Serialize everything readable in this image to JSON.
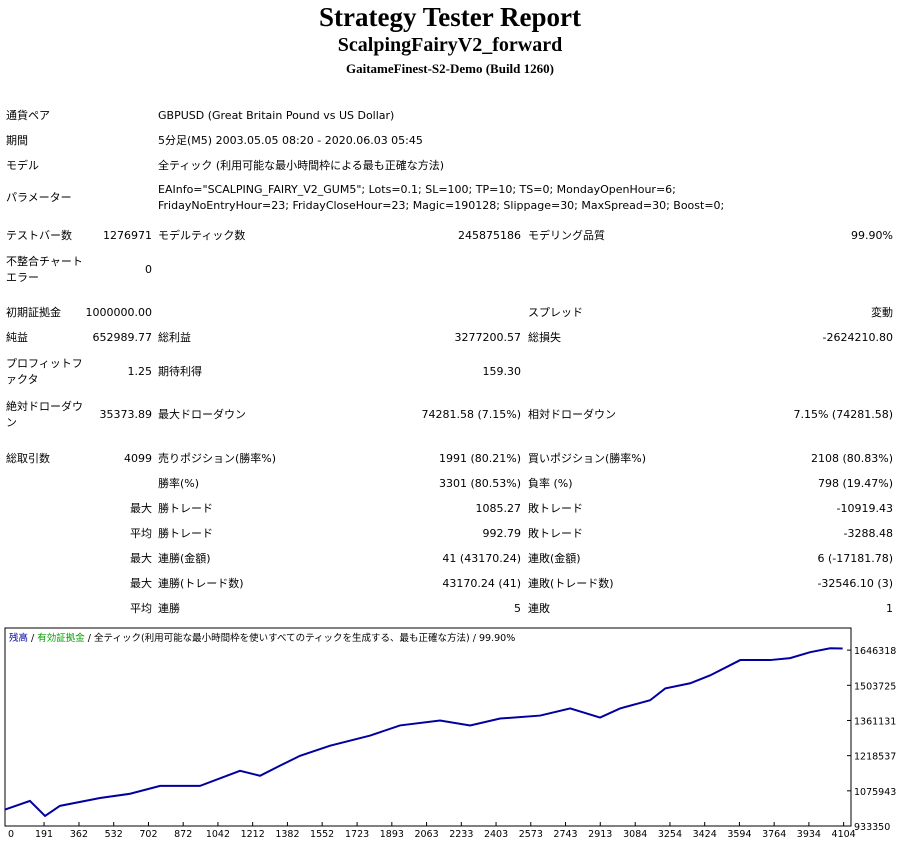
{
  "header": {
    "title": "Strategy Tester Report",
    "subtitle": "ScalpingFairyV2_forward",
    "server": "GaitameFinest-S2-Demo (Build 1260)"
  },
  "table": {
    "rows": [
      [
        "通貨ペア",
        "GBPUSD (Great Britain Pound vs US Dollar)"
      ],
      [
        "期間",
        "5分足(M5) 2003.05.05 08:20 - 2020.06.03 05:45"
      ],
      [
        "モデル",
        "全ティック (利用可能な最小時間枠による最も正確な方法)"
      ],
      [
        "パラメーター",
        "EAInfo=\"SCALPING_FAIRY_V2_GUM5\"; Lots=0.1; SL=100; TP=10; TS=0; MondayOpenHour=6; FridayNoEntryHour=23; FridayCloseHour=23; Magic=190128; Slippage=30; MaxSpread=30; Boost=0;"
      ],
      [
        "テストバー数",
        "1276971",
        "モデルティック数",
        "245875186",
        "モデリング品質",
        "99.90%"
      ],
      [
        "不整合チャートエラー",
        "0"
      ],
      [
        "初期証拠金",
        "1000000.00",
        "スプレッド",
        "変動"
      ],
      [
        "純益",
        "652989.77",
        "総利益",
        "3277200.57",
        "総損失",
        "-2624210.80"
      ],
      [
        "プロフィットファクタ",
        "1.25",
        "期待利得",
        "159.30"
      ],
      [
        "絶対ドローダウン",
        "35373.89",
        "最大ドローダウン",
        "74281.58 (7.15%)",
        "相対ドローダウン",
        "7.15% (74281.58)"
      ],
      [
        "総取引数",
        "4099",
        "売りポジション(勝率%)",
        "1991 (80.21%)",
        "買いポジション(勝率%)",
        "2108 (80.83%)"
      ],
      [
        "勝率(%)",
        "3301 (80.53%)",
        "負率 (%)",
        "798 (19.47%)"
      ],
      [
        "最大",
        "勝トレード",
        "1085.27",
        "敗トレード",
        "-10919.43"
      ],
      [
        "平均",
        "勝トレード",
        "992.79",
        "敗トレード",
        "-3288.48"
      ],
      [
        "最大",
        "連勝(金額)",
        "41 (43170.24)",
        "連敗(金額)",
        "6 (-17181.78)"
      ],
      [
        "最大",
        "連勝(トレード数)",
        "43170.24 (41)",
        "連敗(トレード数)",
        "-32546.10 (3)"
      ],
      [
        "平均",
        "連勝",
        "5",
        "連敗",
        "1"
      ]
    ]
  },
  "chart_data": {
    "type": "line",
    "separator": " / ",
    "equity_label": "有効証拠金",
    "equity_color": "#00a000",
    "model_label": "全ティック(利用可能な最小時間枠を使いすべてのティックを生成する、最も正確な方法)",
    "quality": "99.90%",
    "x": [
      0,
      122,
      196,
      269,
      465,
      612,
      759,
      954,
      1150,
      1248,
      1346,
      1444,
      1591,
      1787,
      1933,
      2129,
      2276,
      2423,
      2619,
      2766,
      2912,
      3010,
      3157,
      3231,
      3353,
      3451,
      3598,
      3744,
      3842,
      3940,
      4038,
      4099
    ],
    "series": [
      {
        "name": "残高",
        "color": "#0000a0",
        "values": [
          1000000,
          1035000,
          974000,
          1015000,
          1047000,
          1064000,
          1096000,
          1096000,
          1157000,
          1137000,
          1178000,
          1218000,
          1259000,
          1300000,
          1341000,
          1361000,
          1341000,
          1369000,
          1381000,
          1410000,
          1373000,
          1410000,
          1443000,
          1491000,
          1512000,
          1544000,
          1606000,
          1606000,
          1614000,
          1638000,
          1654000,
          1652990
        ]
      }
    ],
    "xlim": [
      0,
      4140
    ],
    "xticks": [
      0,
      191,
      362,
      532,
      702,
      872,
      1042,
      1212,
      1382,
      1552,
      1723,
      1893,
      2063,
      2233,
      2403,
      2573,
      2743,
      2913,
      3084,
      3254,
      3424,
      3594,
      3764,
      3934,
      4104
    ],
    "ylim": [
      933350,
      1735948
    ],
    "yticks": [
      933350,
      1075943,
      1218537,
      1361131,
      1503725,
      1646318
    ]
  }
}
